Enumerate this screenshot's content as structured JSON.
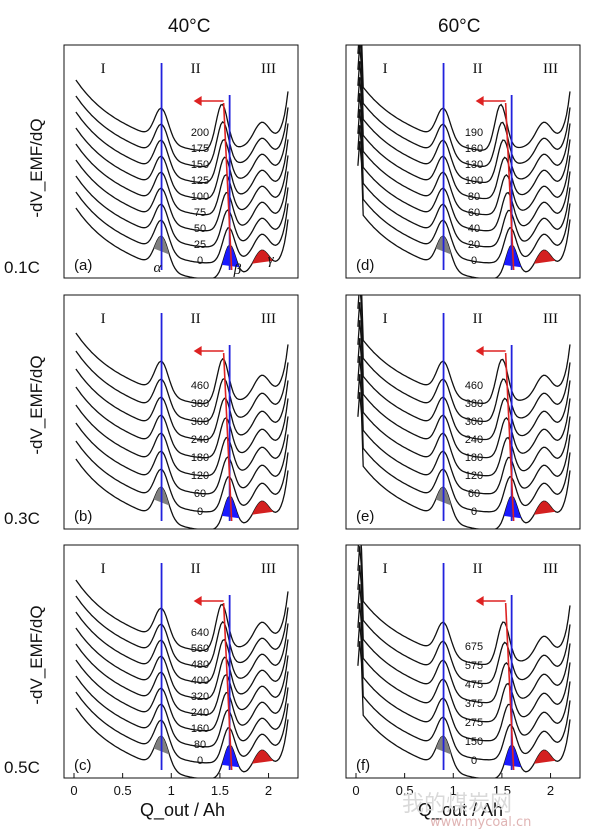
{
  "column_titles": [
    "40°C",
    "60°C"
  ],
  "row_labels": [
    "0.1C",
    "0.3C",
    "0.5C"
  ],
  "y_axis_label": "-dV_EMF/dQ",
  "x_axis_label": "Q_out / Ah",
  "regions": [
    "I",
    "II",
    "III"
  ],
  "peak_labels": {
    "alpha": "α",
    "beta": "β",
    "gamma": "γ"
  },
  "watermark": {
    "main": "我的煤炭网",
    "url": "www.mycoal.cn"
  },
  "colors": {
    "curve": "#111111",
    "alpha_fill": "#808080",
    "beta_fill": "#1a1aff",
    "gamma_fill": "#d42020",
    "blue_line": "#2222dd",
    "red_line": "#dd2222"
  },
  "chart_data": [
    {
      "type": "line",
      "panel": "(a)",
      "temperature": "40°C",
      "c_rate": "0.1C",
      "cycle_labels": [
        "200",
        "175",
        "150",
        "125",
        "100",
        "75",
        "50",
        "25",
        "0"
      ],
      "xlim": [
        0,
        2.2
      ],
      "x_ticks": [],
      "alpha_x": 0.9,
      "beta_x": 1.6,
      "gamma_x": 1.95
    },
    {
      "type": "line",
      "panel": "(d)",
      "temperature": "60°C",
      "c_rate": "0.1C",
      "cycle_labels": [
        "190",
        "160",
        "130",
        "100",
        "80",
        "60",
        "40",
        "20",
        "0"
      ],
      "xlim": [
        0,
        2.2
      ],
      "x_ticks": [],
      "alpha_x": 0.9,
      "beta_x": 1.6,
      "gamma_x": 1.95
    },
    {
      "type": "line",
      "panel": "(b)",
      "temperature": "40°C",
      "c_rate": "0.3C",
      "cycle_labels": [
        "460",
        "380",
        "300",
        "240",
        "180",
        "120",
        "60",
        "0"
      ],
      "xlim": [
        0,
        2.2
      ],
      "x_ticks": [],
      "alpha_x": 0.9,
      "beta_x": 1.6,
      "gamma_x": 1.95
    },
    {
      "type": "line",
      "panel": "(e)",
      "temperature": "60°C",
      "c_rate": "0.3C",
      "cycle_labels": [
        "460",
        "380",
        "300",
        "240",
        "180",
        "120",
        "60",
        "0"
      ],
      "xlim": [
        0,
        2.2
      ],
      "x_ticks": [],
      "alpha_x": 0.9,
      "beta_x": 1.6,
      "gamma_x": 1.95
    },
    {
      "type": "line",
      "panel": "(c)",
      "temperature": "40°C",
      "c_rate": "0.5C",
      "cycle_labels": [
        "640",
        "560",
        "480",
        "400",
        "320",
        "240",
        "160",
        "80",
        "0"
      ],
      "xlim": [
        0,
        2.2
      ],
      "x_ticks": [
        "0",
        "0.5",
        "1",
        "1.5",
        "2"
      ],
      "alpha_x": 0.9,
      "beta_x": 1.6,
      "gamma_x": 1.95
    },
    {
      "type": "line",
      "panel": "(f)",
      "temperature": "60°C",
      "c_rate": "0.5C",
      "cycle_labels": [
        "675",
        "575",
        "475",
        "375",
        "275",
        "150",
        "0"
      ],
      "xlim": [
        0,
        2.2
      ],
      "x_ticks": [
        "0",
        "0.5",
        "1",
        "1.5",
        "2"
      ],
      "alpha_x": 0.9,
      "beta_x": 1.6,
      "gamma_x": 1.95
    }
  ]
}
